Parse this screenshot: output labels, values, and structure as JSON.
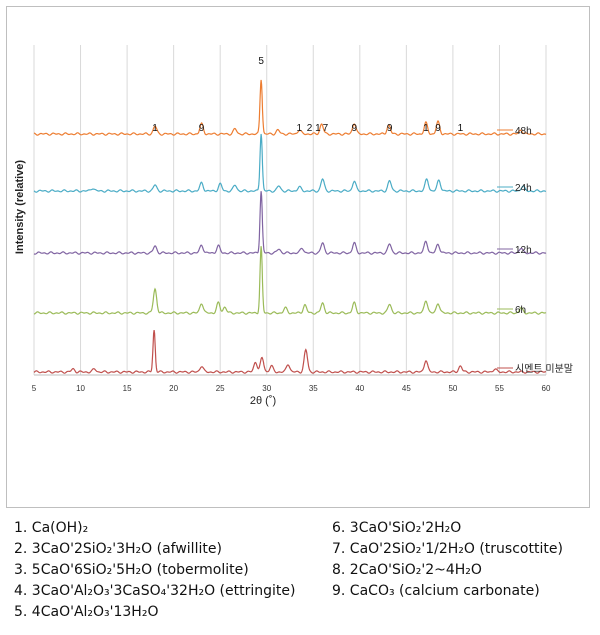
{
  "chart_data": {
    "type": "line",
    "title": "",
    "xlabel": "2θ (˚)",
    "ylabel": "Intensity (relative)",
    "xlim": [
      5,
      60
    ],
    "x_ticks": [
      "5",
      "10",
      "15",
      "20",
      "25",
      "30",
      "35",
      "40",
      "45",
      "50",
      "55",
      "60"
    ],
    "grid": true,
    "series": [
      {
        "name": "48h",
        "color": "#ed7d31",
        "peaks": [
          [
            18.0,
            8
          ],
          [
            23.0,
            10
          ],
          [
            26.6,
            5
          ],
          [
            29.4,
            55
          ],
          [
            31.2,
            4
          ],
          [
            33.5,
            4
          ],
          [
            35.9,
            10
          ],
          [
            39.4,
            11
          ],
          [
            43.1,
            9
          ],
          [
            47.1,
            11
          ],
          [
            48.4,
            12
          ],
          [
            57.3,
            4
          ]
        ]
      },
      {
        "name": "24h",
        "color": "#4bacc6",
        "peaks": [
          [
            11.3,
            3
          ],
          [
            18.0,
            6
          ],
          [
            23.0,
            8
          ],
          [
            25.0,
            7
          ],
          [
            26.6,
            6
          ],
          [
            29.4,
            58
          ],
          [
            31.3,
            5
          ],
          [
            33.5,
            4
          ],
          [
            36.0,
            12
          ],
          [
            39.4,
            10
          ],
          [
            43.2,
            10
          ],
          [
            47.2,
            12
          ],
          [
            48.5,
            11
          ],
          [
            57.5,
            5
          ]
        ]
      },
      {
        "name": "12h",
        "color": "#8064a2",
        "peaks": [
          [
            18.0,
            7
          ],
          [
            23.0,
            8
          ],
          [
            24.8,
            7
          ],
          [
            29.4,
            62
          ],
          [
            31.3,
            4
          ],
          [
            33.8,
            5
          ],
          [
            36.0,
            10
          ],
          [
            39.4,
            10
          ],
          [
            43.2,
            9
          ],
          [
            47.1,
            12
          ],
          [
            48.4,
            9
          ],
          [
            57.3,
            5
          ]
        ]
      },
      {
        "name": "6h",
        "color": "#9bbb59",
        "peaks": [
          [
            18.0,
            24
          ],
          [
            23.0,
            10
          ],
          [
            24.8,
            10
          ],
          [
            25.5,
            6
          ],
          [
            29.4,
            66
          ],
          [
            32.0,
            5
          ],
          [
            34.1,
            8
          ],
          [
            36.0,
            10
          ],
          [
            39.4,
            10
          ],
          [
            43.2,
            9
          ],
          [
            47.1,
            13
          ],
          [
            48.4,
            10
          ],
          [
            57.3,
            5
          ]
        ]
      },
      {
        "name": "시멘트 미분말",
        "color": "#c0504d",
        "peaks": [
          [
            9.2,
            3
          ],
          [
            11.5,
            3
          ],
          [
            17.9,
            42
          ],
          [
            23.0,
            6
          ],
          [
            28.8,
            10
          ],
          [
            29.5,
            14
          ],
          [
            30.5,
            6
          ],
          [
            32.3,
            8
          ],
          [
            34.2,
            22
          ],
          [
            47.1,
            12
          ],
          [
            50.8,
            6
          ],
          [
            54.5,
            3
          ]
        ]
      }
    ],
    "annotations": [
      {
        "text": "1",
        "x": 18.0
      },
      {
        "text": "9",
        "x": 23.0
      },
      {
        "text": "5",
        "x": 29.4
      },
      {
        "text": "1",
        "x": 33.5
      },
      {
        "text": "2",
        "x": 34.6
      },
      {
        "text": "1",
        "x": 35.5
      },
      {
        "text": "7",
        "x": 36.3
      },
      {
        "text": "9",
        "x": 39.4
      },
      {
        "text": "9",
        "x": 43.2
      },
      {
        "text": "1",
        "x": 47.1
      },
      {
        "text": "9",
        "x": 48.4
      },
      {
        "text": "1",
        "x": 50.8
      }
    ],
    "phase_legend": [
      "1. Ca(OH)₂",
      "2. 3CaO'2SiO₂'3H₂O (afwillite)",
      "3. 5CaO'6SiO₂'5H₂O (tobermolite)",
      "4. 3CaO'Al₂O₃'3CaSO₄'32H₂O (ettringite)",
      "5. 4CaO'Al₂O₃'13H₂O",
      "6. 3CaO'SiO₂'2H₂O",
      "7. CaO'2SiO₂'1/2H₂O (truscottite)",
      "8. 2CaO'SiO₂'2~4H₂O",
      "9. CaCO₃ (calcium carbonate)"
    ]
  }
}
